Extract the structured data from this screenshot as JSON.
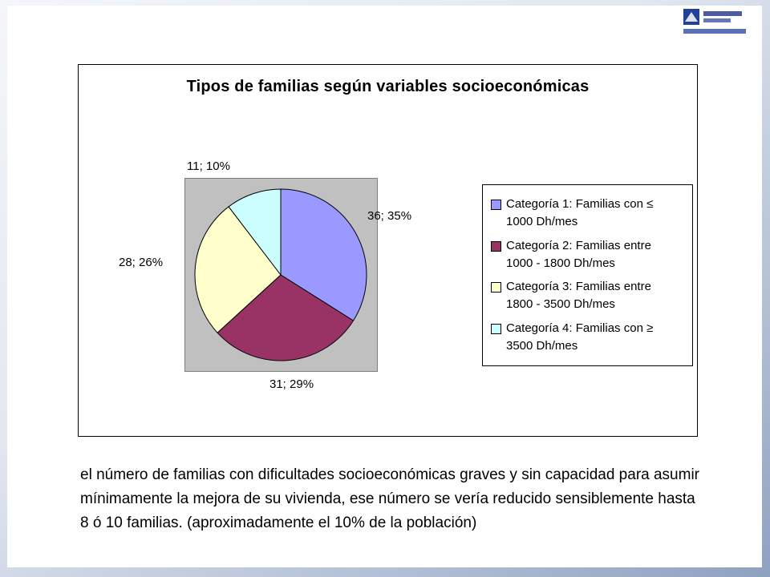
{
  "slide": {
    "body_text": "el número de familias con dificultades socioeconómicas graves y sin capacidad para asumir mínimamente la mejora de su vivienda, ese número se vería reducido sensiblemente hasta 8 ó 10 familias. (aproximadamente el 10% de la población)"
  },
  "icons": {
    "logo": "organization-logo"
  },
  "chart_data": {
    "type": "pie",
    "title": "Tipos de familias según variables socioeconómicas",
    "legend_position": "right",
    "start_angle": "top",
    "direction": "clockwise",
    "plot_area_bg": "#C0C0C0",
    "slices": [
      {
        "label": "Categoría 1: Familias con ≤ 1000 Dh/mes",
        "value": 36,
        "percent": "35%",
        "data_label": "36; 35%",
        "color": "#9999FF"
      },
      {
        "label": "Categoría 2: Familias entre 1000 - 1800 Dh/mes",
        "value": 31,
        "percent": "29%",
        "data_label": "31; 29%",
        "color": "#993366"
      },
      {
        "label": "Categoría 3: Familias entre 1800 - 3500 Dh/mes",
        "value": 28,
        "percent": "26%",
        "data_label": "28; 26%",
        "color": "#FFFFCC"
      },
      {
        "label": "Categoría 4: Familias con ≥ 3500 Dh/mes",
        "value": 11,
        "percent": "10%",
        "data_label": "11; 10%",
        "color": "#CCFFFF"
      }
    ]
  }
}
